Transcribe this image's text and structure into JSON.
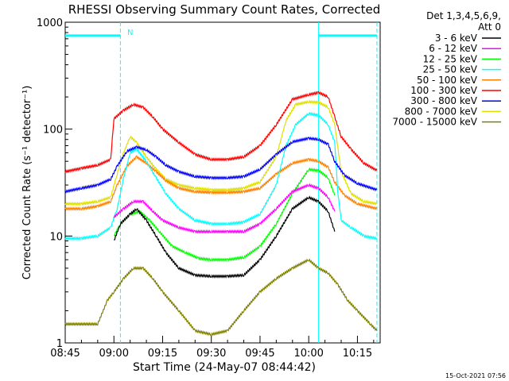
{
  "chart_data": {
    "type": "line",
    "title": "RHESSI Observing Summary Count Rates, Corrected",
    "xlabel": "Start Time (24-May-07 08:44:42)",
    "ylabel": "Corrected Count Rate (s⁻¹ detector⁻¹)",
    "yscale": "log",
    "ylim": [
      1,
      1000
    ],
    "xlim": [
      "08:45",
      "10:22"
    ],
    "x_ticks": [
      "08:45",
      "09:00",
      "09:15",
      "09:30",
      "09:45",
      "10:00",
      "10:15"
    ],
    "y_ticks": [
      "1",
      "10",
      "100",
      "1000"
    ],
    "timestamp": "15-Oct-2021 07:56",
    "legend": {
      "position": "right",
      "header": [
        "Det 1,3,4,5,6,9,",
        "Att 0"
      ]
    },
    "flag_marker": "N",
    "series": [
      {
        "name": "3 - 6 keV",
        "color": "#000000",
        "points": [
          [
            "09:00",
            9.0
          ],
          [
            "09:02",
            13
          ],
          [
            "09:05",
            16
          ],
          [
            "09:07",
            18
          ],
          [
            "09:10",
            14
          ],
          [
            "09:13",
            10
          ],
          [
            "09:16",
            7
          ],
          [
            "09:20",
            5
          ],
          [
            "09:25",
            4.3
          ],
          [
            "09:30",
            4.2
          ],
          [
            "09:35",
            4.2
          ],
          [
            "09:40",
            4.3
          ],
          [
            "09:45",
            6
          ],
          [
            "09:50",
            10
          ],
          [
            "09:55",
            18
          ],
          [
            "10:00",
            23
          ],
          [
            "10:03",
            21
          ],
          [
            "10:06",
            17
          ],
          [
            "10:08",
            11
          ]
        ]
      },
      {
        "name": "6 - 12 keV",
        "color": "#ff00ff",
        "points": [
          [
            "09:00",
            15
          ],
          [
            "09:03",
            18
          ],
          [
            "09:06",
            21
          ],
          [
            "09:09",
            21
          ],
          [
            "09:12",
            17
          ],
          [
            "09:15",
            14
          ],
          [
            "09:20",
            12
          ],
          [
            "09:25",
            11
          ],
          [
            "09:30",
            11
          ],
          [
            "09:35",
            11
          ],
          [
            "09:40",
            11
          ],
          [
            "09:45",
            13
          ],
          [
            "09:50",
            18
          ],
          [
            "09:55",
            26
          ],
          [
            "10:00",
            30
          ],
          [
            "10:03",
            28
          ],
          [
            "10:06",
            23
          ],
          [
            "10:08",
            17
          ]
        ]
      },
      {
        "name": "12 - 25 keV",
        "color": "#00ff00",
        "points": [
          [
            "09:00",
            10
          ],
          [
            "09:02",
            13
          ],
          [
            "09:05",
            16
          ],
          [
            "09:08",
            17
          ],
          [
            "09:11",
            14
          ],
          [
            "09:14",
            11
          ],
          [
            "09:18",
            8
          ],
          [
            "09:22",
            7
          ],
          [
            "09:26",
            6.2
          ],
          [
            "09:30",
            6
          ],
          [
            "09:35",
            6
          ],
          [
            "09:40",
            6.3
          ],
          [
            "09:45",
            8
          ],
          [
            "09:50",
            13
          ],
          [
            "09:55",
            25
          ],
          [
            "10:00",
            42
          ],
          [
            "10:03",
            41
          ],
          [
            "10:06",
            35
          ],
          [
            "10:08",
            24
          ]
        ]
      },
      {
        "name": "25 - 50 keV",
        "color": "#00ffff",
        "points": [
          [
            "08:45",
            9.5
          ],
          [
            "08:50",
            9.5
          ],
          [
            "08:55",
            10
          ],
          [
            "08:59",
            12
          ],
          [
            "09:01",
            18
          ],
          [
            "09:03",
            35
          ],
          [
            "09:05",
            60
          ],
          [
            "09:07",
            65
          ],
          [
            "09:10",
            50
          ],
          [
            "09:13",
            35
          ],
          [
            "09:16",
            25
          ],
          [
            "09:20",
            18
          ],
          [
            "09:25",
            14
          ],
          [
            "09:30",
            13
          ],
          [
            "09:35",
            13
          ],
          [
            "09:40",
            13.5
          ],
          [
            "09:45",
            16
          ],
          [
            "09:50",
            30
          ],
          [
            "09:53",
            70
          ],
          [
            "09:56",
            110
          ],
          [
            "10:00",
            140
          ],
          [
            "10:03",
            135
          ],
          [
            "10:06",
            110
          ],
          [
            "10:08",
            75
          ],
          [
            "10:09",
            25
          ],
          [
            "10:10",
            14
          ],
          [
            "10:13",
            12
          ],
          [
            "10:17",
            10
          ],
          [
            "10:21",
            9.5
          ]
        ]
      },
      {
        "name": "50 - 100 keV",
        "color": "#ff8000",
        "points": [
          [
            "08:45",
            18
          ],
          [
            "08:50",
            18
          ],
          [
            "08:55",
            19
          ],
          [
            "08:59",
            21
          ],
          [
            "09:01",
            30
          ],
          [
            "09:04",
            45
          ],
          [
            "09:07",
            55
          ],
          [
            "09:10",
            48
          ],
          [
            "09:13",
            40
          ],
          [
            "09:16",
            33
          ],
          [
            "09:20",
            28
          ],
          [
            "09:25",
            26
          ],
          [
            "09:30",
            25.5
          ],
          [
            "09:35",
            25.5
          ],
          [
            "09:40",
            26
          ],
          [
            "09:45",
            28
          ],
          [
            "09:50",
            38
          ],
          [
            "09:55",
            48
          ],
          [
            "10:00",
            52
          ],
          [
            "10:03",
            50
          ],
          [
            "10:06",
            44
          ],
          [
            "10:08",
            32
          ],
          [
            "10:11",
            24
          ],
          [
            "10:15",
            20
          ],
          [
            "10:21",
            18
          ]
        ]
      },
      {
        "name": "100 - 300 keV",
        "color": "#ff0000",
        "points": [
          [
            "08:45",
            40
          ],
          [
            "08:50",
            43
          ],
          [
            "08:55",
            46
          ],
          [
            "08:59",
            52
          ],
          [
            "09:00",
            125
          ],
          [
            "09:03",
            150
          ],
          [
            "09:06",
            170
          ],
          [
            "09:09",
            160
          ],
          [
            "09:12",
            130
          ],
          [
            "09:15",
            100
          ],
          [
            "09:20",
            75
          ],
          [
            "09:25",
            58
          ],
          [
            "09:30",
            52
          ],
          [
            "09:35",
            52
          ],
          [
            "09:40",
            55
          ],
          [
            "09:45",
            70
          ],
          [
            "09:50",
            110
          ],
          [
            "09:55",
            190
          ],
          [
            "10:00",
            210
          ],
          [
            "10:03",
            220
          ],
          [
            "10:06",
            200
          ],
          [
            "10:08",
            130
          ],
          [
            "10:10",
            85
          ],
          [
            "10:13",
            65
          ],
          [
            "10:17",
            48
          ],
          [
            "10:21",
            41
          ]
        ]
      },
      {
        "name": "300 - 800 keV",
        "color": "#0000ff",
        "points": [
          [
            "08:45",
            26
          ],
          [
            "08:50",
            28
          ],
          [
            "08:55",
            30
          ],
          [
            "08:59",
            34
          ],
          [
            "09:01",
            45
          ],
          [
            "09:04",
            62
          ],
          [
            "09:07",
            68
          ],
          [
            "09:10",
            64
          ],
          [
            "09:13",
            55
          ],
          [
            "09:16",
            46
          ],
          [
            "09:20",
            40
          ],
          [
            "09:25",
            36
          ],
          [
            "09:30",
            35
          ],
          [
            "09:35",
            35
          ],
          [
            "09:40",
            36
          ],
          [
            "09:45",
            42
          ],
          [
            "09:50",
            58
          ],
          [
            "09:55",
            76
          ],
          [
            "10:00",
            82
          ],
          [
            "10:03",
            80
          ],
          [
            "10:06",
            72
          ],
          [
            "10:08",
            50
          ],
          [
            "10:11",
            37
          ],
          [
            "10:15",
            31
          ],
          [
            "10:21",
            27
          ]
        ]
      },
      {
        "name": "800 - 7000 keV",
        "color": "#e0e000",
        "points": [
          [
            "08:45",
            20
          ],
          [
            "08:50",
            20
          ],
          [
            "08:55",
            21
          ],
          [
            "08:59",
            23
          ],
          [
            "09:01",
            38
          ],
          [
            "09:03",
            60
          ],
          [
            "09:05",
            85
          ],
          [
            "09:07",
            75
          ],
          [
            "09:10",
            55
          ],
          [
            "09:13",
            42
          ],
          [
            "09:16",
            34
          ],
          [
            "09:20",
            30
          ],
          [
            "09:25",
            28
          ],
          [
            "09:30",
            27
          ],
          [
            "09:35",
            27
          ],
          [
            "09:40",
            28
          ],
          [
            "09:45",
            32
          ],
          [
            "09:50",
            55
          ],
          [
            "09:53",
            120
          ],
          [
            "09:56",
            170
          ],
          [
            "10:00",
            180
          ],
          [
            "10:03",
            178
          ],
          [
            "10:06",
            160
          ],
          [
            "10:08",
            110
          ],
          [
            "10:10",
            40
          ],
          [
            "10:13",
            25
          ],
          [
            "10:17",
            21
          ],
          [
            "10:21",
            20
          ]
        ]
      },
      {
        "name": "7000 - 15000 keV",
        "color": "#808000",
        "points": [
          [
            "08:45",
            1.5
          ],
          [
            "08:55",
            1.5
          ],
          [
            "08:58",
            2.5
          ],
          [
            "09:00",
            3
          ],
          [
            "09:03",
            4
          ],
          [
            "09:06",
            5
          ],
          [
            "09:09",
            5
          ],
          [
            "09:12",
            4
          ],
          [
            "09:15",
            3
          ],
          [
            "09:20",
            2
          ],
          [
            "09:25",
            1.3
          ],
          [
            "09:30",
            1.2
          ],
          [
            "09:35",
            1.3
          ],
          [
            "09:40",
            2
          ],
          [
            "09:45",
            3
          ],
          [
            "09:50",
            4
          ],
          [
            "09:55",
            5
          ],
          [
            "10:00",
            6
          ],
          [
            "10:03",
            5
          ],
          [
            "10:06",
            4.5
          ],
          [
            "10:09",
            3.5
          ],
          [
            "10:12",
            2.5
          ],
          [
            "10:15",
            2
          ],
          [
            "10:19",
            1.5
          ],
          [
            "10:21",
            1.3
          ]
        ]
      }
    ],
    "vertical_lines": [
      {
        "t": "09:02",
        "style": "dashed",
        "color": "#00ffff"
      },
      {
        "t": "10:03",
        "style": "solid",
        "color": "#00ffff"
      },
      {
        "t": "10:21",
        "style": "dashed",
        "color": "#00ffff"
      }
    ],
    "top_bars": [
      {
        "from": "08:45",
        "to": "09:02",
        "y": 750,
        "color": "#00ffff"
      },
      {
        "from": "10:03",
        "to": "10:21",
        "y": 750,
        "color": "#00ffff"
      }
    ]
  }
}
